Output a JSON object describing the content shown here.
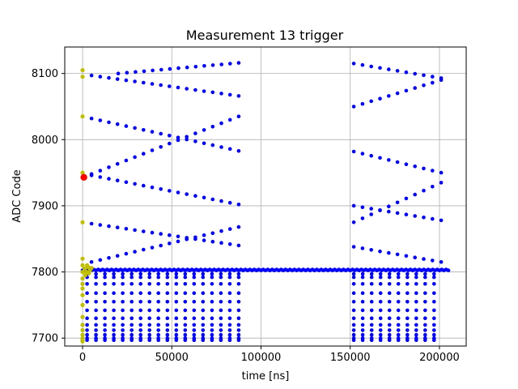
{
  "chart_data": {
    "type": "scatter",
    "title": "Measurement 13 trigger",
    "xlabel": "time [ns]",
    "ylabel": "ADC Code",
    "xlim": [
      -10000,
      215000
    ],
    "ylim": [
      7688,
      8140
    ],
    "xticks": [
      0,
      50000,
      100000,
      150000,
      200000
    ],
    "yticks": [
      7700,
      7800,
      7900,
      8000,
      8100
    ],
    "grid": true,
    "colors": {
      "main": "#0000ff",
      "pretrigger": "#bfbf00",
      "trigger": "#ff0000"
    },
    "series": [
      {
        "color": "#0000ff",
        "baseline": 7803,
        "baseline_x_range": [
          0,
          205000
        ],
        "segments": [
          [
            2500,
            87500
          ],
          [
            152000,
            201000
          ]
        ],
        "segment_x_step": 5000,
        "below_baseline_levels": [
          7697,
          7700,
          7705,
          7712,
          7720,
          7730,
          7742,
          7755,
          7768,
          7782,
          7792,
          7797
        ],
        "upper_traces": [
          {
            "x": [
              5000,
              87500
            ],
            "y": [
              8097,
              8066
            ]
          },
          {
            "x": [
              5000,
              87500
            ],
            "y": [
              8032,
              7983
            ]
          },
          {
            "x": [
              5000,
              87500
            ],
            "y": [
              7948,
              8035
            ]
          },
          {
            "x": [
              5000,
              87500
            ],
            "y": [
              7946,
              7902
            ]
          },
          {
            "x": [
              5000,
              87500
            ],
            "y": [
              7873,
              7840
            ]
          },
          {
            "x": [
              5000,
              87500
            ],
            "y": [
              7815,
              7868
            ]
          },
          {
            "x": [
              20000,
              87500
            ],
            "y": [
              8100,
              8116
            ]
          },
          {
            "x": [
              152000,
              201000
            ],
            "y": [
              8115,
              8093
            ]
          },
          {
            "x": [
              152000,
              201000
            ],
            "y": [
              8050,
              8090
            ]
          },
          {
            "x": [
              152000,
              201000
            ],
            "y": [
              7982,
              7950
            ]
          },
          {
            "x": [
              152000,
              201000
            ],
            "y": [
              7875,
              7935
            ]
          },
          {
            "x": [
              152000,
              201000
            ],
            "y": [
              7900,
              7878
            ]
          },
          {
            "x": [
              152000,
              201000
            ],
            "y": [
              7838,
              7815
            ]
          }
        ]
      },
      {
        "color": "#bfbf00",
        "points": [
          [
            0,
            8105
          ],
          [
            0,
            8095
          ],
          [
            0,
            8035
          ],
          [
            0,
            7950
          ],
          [
            0,
            7875
          ],
          [
            0,
            7820
          ],
          [
            0,
            7810
          ],
          [
            0,
            7800
          ],
          [
            0,
            7790
          ],
          [
            0,
            7782
          ],
          [
            0,
            7775
          ],
          [
            0,
            7765
          ],
          [
            0,
            7750
          ],
          [
            0,
            7732
          ],
          [
            0,
            7720
          ],
          [
            0,
            7712
          ],
          [
            0,
            7705
          ],
          [
            0,
            7700
          ],
          [
            0,
            7697
          ],
          [
            0,
            7695
          ],
          [
            1200,
            7805
          ],
          [
            2200,
            7800
          ],
          [
            3200,
            7807
          ],
          [
            4200,
            7802
          ],
          [
            5000,
            7806
          ],
          [
            1500,
            7795
          ],
          [
            2500,
            7810
          ],
          [
            3500,
            7798
          ]
        ]
      },
      {
        "color": "#ff0000",
        "points": [
          [
            700,
            7943
          ]
        ]
      }
    ]
  }
}
